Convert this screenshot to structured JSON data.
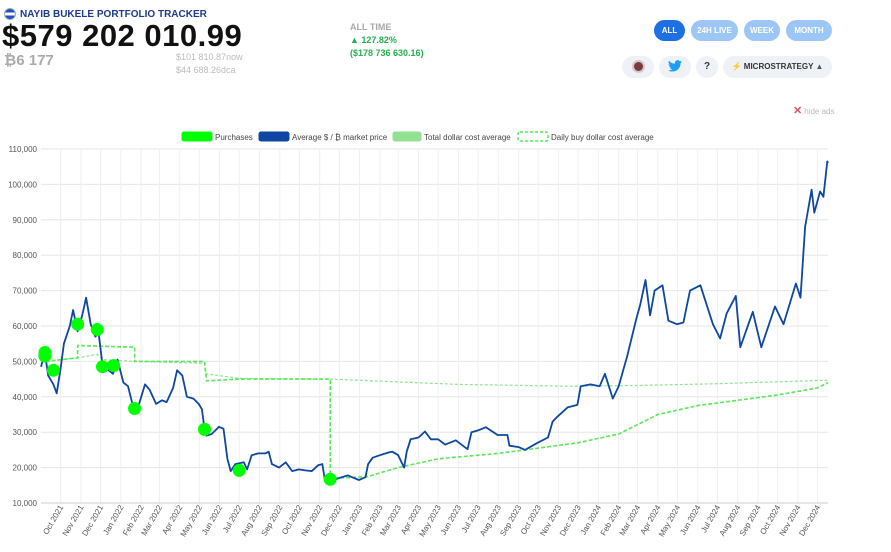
{
  "header": {
    "brand": "NAYIB BUKELE PORTFOLIO TRACKER",
    "value": "$579 202 010.99",
    "btc": "₿6 177",
    "now_price": "$101 810.87",
    "now_label": "now",
    "dca_price": "$44 688.26",
    "dca_label": "dca",
    "alltime_label": "ALL TIME",
    "alltime_pct": "▲ 127.82%",
    "alltime_gain": "($178 736 630.16)"
  },
  "ranges": [
    "ALL",
    "24H LIVE",
    "WEEK",
    "MONTH"
  ],
  "active_range": "ALL",
  "icons": {
    "twitter": "twitter-icon",
    "help": "?",
    "microstrategy": "MICROSTRATEGY"
  },
  "hide_ads": "hide ads",
  "colors": {
    "price": "#0d47a1",
    "purchases": "#00ff00",
    "total_dca": "#93e193",
    "daily_dca": "#5ce65c",
    "active_button": "#1e6fe0",
    "button": "#9cc6f5"
  },
  "chart_data": {
    "type": "line",
    "legend": [
      "Purchases",
      "Average $ / ₿ market price",
      "Total dollar cost average",
      "Daily buy dollar cost average"
    ],
    "legend_position": "top",
    "y_ticks": [
      "10,000",
      "20,000",
      "30,000",
      "40,000",
      "50,000",
      "60,000",
      "70,000",
      "80,000",
      "90,000",
      "100,000",
      "110,000"
    ],
    "ylim": [
      10000,
      110000
    ],
    "x_ticks": [
      "Oct 2021",
      "Nov 2021",
      "Dec 2021",
      "Jan 2022",
      "Feb 2022",
      "Mar 2022",
      "Apr 2022",
      "May 2022",
      "Jun 2022",
      "Jul 2022",
      "Aug 2022",
      "Sep 2022",
      "Oct 2022",
      "Nov 2022",
      "Dec 2022",
      "Jan 2023",
      "Feb 2023",
      "Mar 2023",
      "Apr 2023",
      "May 2023",
      "Jun 2023",
      "Jul 2023",
      "Aug 2023",
      "Sep 2023",
      "Oct 2023",
      "Nov 2023",
      "Dec 2023",
      "Jan 2024",
      "Feb 2024",
      "Mar 2024",
      "Apr 2024",
      "May 2024",
      "Jun 2024",
      "Jul 2024",
      "Aug 2024",
      "Sep 2024",
      "Oct 2024",
      "Nov 2024",
      "Dec 2024"
    ],
    "xlim": [
      "2021-09-01",
      "2024-12-17"
    ],
    "grid": true,
    "price": [
      [
        "2021-09-01",
        48500
      ],
      [
        "2021-09-07",
        52500
      ],
      [
        "2021-09-12",
        46000
      ],
      [
        "2021-09-20",
        43500
      ],
      [
        "2021-09-25",
        41000
      ],
      [
        "2021-10-01",
        48000
      ],
      [
        "2021-10-06",
        55000
      ],
      [
        "2021-10-15",
        60000
      ],
      [
        "2021-10-20",
        64500
      ],
      [
        "2021-10-27",
        58500
      ],
      [
        "2021-11-03",
        63000
      ],
      [
        "2021-11-09",
        68000
      ],
      [
        "2021-11-16",
        60500
      ],
      [
        "2021-11-23",
        57000
      ],
      [
        "2021-11-28",
        58000
      ],
      [
        "2021-12-04",
        49000
      ],
      [
        "2021-12-10",
        48000
      ],
      [
        "2021-12-20",
        46500
      ],
      [
        "2021-12-27",
        50500
      ],
      [
        "2022-01-05",
        44000
      ],
      [
        "2022-01-12",
        43000
      ],
      [
        "2022-01-22",
        35500
      ],
      [
        "2022-01-29",
        38000
      ],
      [
        "2022-02-07",
        43500
      ],
      [
        "2022-02-14",
        42000
      ],
      [
        "2022-02-24",
        38000
      ],
      [
        "2022-03-05",
        39000
      ],
      [
        "2022-03-12",
        38500
      ],
      [
        "2022-03-22",
        42500
      ],
      [
        "2022-03-28",
        47500
      ],
      [
        "2022-04-05",
        46000
      ],
      [
        "2022-04-12",
        40000
      ],
      [
        "2022-04-22",
        39500
      ],
      [
        "2022-04-30",
        38000
      ],
      [
        "2022-05-05",
        36500
      ],
      [
        "2022-05-09",
        31000
      ],
      [
        "2022-05-12",
        29000
      ],
      [
        "2022-05-20",
        29500
      ],
      [
        "2022-05-31",
        31500
      ],
      [
        "2022-06-07",
        31000
      ],
      [
        "2022-06-13",
        22500
      ],
      [
        "2022-06-18",
        19000
      ],
      [
        "2022-06-25",
        21000
      ],
      [
        "2022-07-08",
        21500
      ],
      [
        "2022-07-13",
        19500
      ],
      [
        "2022-07-20",
        23500
      ],
      [
        "2022-07-30",
        24000
      ],
      [
        "2022-08-10",
        24000
      ],
      [
        "2022-08-15",
        24500
      ],
      [
        "2022-08-20",
        21000
      ],
      [
        "2022-08-31",
        20000
      ],
      [
        "2022-09-10",
        21500
      ],
      [
        "2022-09-20",
        19000
      ],
      [
        "2022-09-30",
        19500
      ],
      [
        "2022-10-10",
        19200
      ],
      [
        "2022-10-20",
        19000
      ],
      [
        "2022-10-30",
        20700
      ],
      [
        "2022-11-05",
        21000
      ],
      [
        "2022-11-09",
        16500
      ],
      [
        "2022-11-20",
        16300
      ],
      [
        "2022-11-30",
        17000
      ],
      [
        "2022-12-14",
        17800
      ],
      [
        "2022-12-31",
        16500
      ],
      [
        "2023-01-10",
        17300
      ],
      [
        "2023-01-14",
        21000
      ],
      [
        "2023-01-21",
        22800
      ],
      [
        "2023-02-01",
        23500
      ],
      [
        "2023-02-15",
        24300
      ],
      [
        "2023-02-20",
        24500
      ],
      [
        "2023-03-01",
        23500
      ],
      [
        "2023-03-10",
        20000
      ],
      [
        "2023-03-14",
        24500
      ],
      [
        "2023-03-20",
        28000
      ],
      [
        "2023-04-01",
        28500
      ],
      [
        "2023-04-11",
        30200
      ],
      [
        "2023-04-20",
        28000
      ],
      [
        "2023-05-01",
        28000
      ],
      [
        "2023-05-12",
        26500
      ],
      [
        "2023-05-28",
        27700
      ],
      [
        "2023-06-15",
        25200
      ],
      [
        "2023-06-21",
        30000
      ],
      [
        "2023-07-01",
        30500
      ],
      [
        "2023-07-13",
        31400
      ],
      [
        "2023-07-31",
        29200
      ],
      [
        "2023-08-15",
        29200
      ],
      [
        "2023-08-18",
        26200
      ],
      [
        "2023-09-01",
        25800
      ],
      [
        "2023-09-11",
        25000
      ],
      [
        "2023-09-30",
        27000
      ],
      [
        "2023-10-16",
        28500
      ],
      [
        "2023-10-23",
        33000
      ],
      [
        "2023-10-31",
        34500
      ],
      [
        "2023-11-15",
        37000
      ],
      [
        "2023-11-30",
        37700
      ],
      [
        "2023-12-05",
        43000
      ],
      [
        "2023-12-20",
        43500
      ],
      [
        "2024-01-03",
        43000
      ],
      [
        "2024-01-11",
        46500
      ],
      [
        "2024-01-23",
        39500
      ],
      [
        "2024-02-01",
        43000
      ],
      [
        "2024-02-14",
        51500
      ],
      [
        "2024-02-28",
        62000
      ],
      [
        "2024-03-05",
        66000
      ],
      [
        "2024-03-13",
        73000
      ],
      [
        "2024-03-20",
        63000
      ],
      [
        "2024-03-27",
        70000
      ],
      [
        "2024-04-08",
        71500
      ],
      [
        "2024-04-17",
        61500
      ],
      [
        "2024-04-30",
        60500
      ],
      [
        "2024-05-10",
        61000
      ],
      [
        "2024-05-20",
        70000
      ],
      [
        "2024-06-05",
        71500
      ],
      [
        "2024-06-24",
        60500
      ],
      [
        "2024-07-05",
        56500
      ],
      [
        "2024-07-15",
        63500
      ],
      [
        "2024-07-29",
        68500
      ],
      [
        "2024-08-05",
        54000
      ],
      [
        "2024-08-24",
        64000
      ],
      [
        "2024-09-06",
        54000
      ],
      [
        "2024-09-27",
        65500
      ],
      [
        "2024-10-10",
        60500
      ],
      [
        "2024-10-29",
        72000
      ],
      [
        "2024-11-05",
        68000
      ],
      [
        "2024-11-12",
        88000
      ],
      [
        "2024-11-22",
        98500
      ],
      [
        "2024-11-26",
        92000
      ],
      [
        "2024-12-05",
        98000
      ],
      [
        "2024-12-10",
        96500
      ],
      [
        "2024-12-16",
        106500
      ],
      [
        "2024-12-17",
        106000
      ]
    ],
    "total_dca": [
      [
        "2021-09-01",
        52000
      ],
      [
        "2021-09-07",
        50000
      ],
      [
        "2021-10-27",
        51000
      ],
      [
        "2021-11-26",
        52000
      ],
      [
        "2021-12-04",
        50500
      ],
      [
        "2022-01-22",
        50000
      ],
      [
        "2022-05-09",
        49500
      ],
      [
        "2022-05-12",
        46500
      ],
      [
        "2022-07-01",
        45200
      ],
      [
        "2022-11-17",
        45000
      ],
      [
        "2023-06-01",
        43500
      ],
      [
        "2023-11-17",
        43000
      ],
      [
        "2024-03-01",
        43200
      ],
      [
        "2024-07-01",
        43700
      ],
      [
        "2024-12-17",
        44700
      ]
    ],
    "daily_dca": [
      [
        "2021-09-01",
        51000
      ],
      [
        "2021-09-07",
        50000
      ],
      [
        "2021-10-27",
        51000
      ],
      [
        "2021-10-27",
        54500
      ],
      [
        "2022-01-22",
        54000
      ],
      [
        "2022-01-22",
        50000
      ],
      [
        "2022-05-09",
        50000
      ],
      [
        "2022-05-12",
        44500
      ],
      [
        "2022-06-30",
        45000
      ],
      [
        "2022-11-17",
        45000
      ],
      [
        "2022-11-17",
        17000
      ],
      [
        "2022-12-20",
        17200
      ],
      [
        "2023-01-15",
        17500
      ],
      [
        "2023-02-01",
        18500
      ],
      [
        "2023-03-01",
        20000
      ],
      [
        "2023-05-01",
        22500
      ],
      [
        "2023-08-01",
        24000
      ],
      [
        "2023-10-01",
        25500
      ],
      [
        "2023-12-01",
        27000
      ],
      [
        "2024-02-01",
        29500
      ],
      [
        "2024-04-01",
        35000
      ],
      [
        "2024-06-01",
        37500
      ],
      [
        "2024-08-01",
        39000
      ],
      [
        "2024-10-01",
        40500
      ],
      [
        "2024-12-01",
        42500
      ],
      [
        "2024-12-17",
        44000
      ]
    ],
    "purchases": [
      [
        "2021-09-07",
        52500
      ],
      [
        "2021-09-07",
        51500
      ],
      [
        "2021-09-20",
        47500
      ],
      [
        "2021-10-27",
        60500
      ],
      [
        "2021-11-26",
        59000
      ],
      [
        "2021-12-04",
        48500
      ],
      [
        "2021-12-21",
        48800
      ],
      [
        "2022-01-22",
        36700
      ],
      [
        "2022-05-09",
        30800
      ],
      [
        "2022-07-01",
        19200
      ],
      [
        "2022-11-17",
        16700
      ]
    ]
  }
}
